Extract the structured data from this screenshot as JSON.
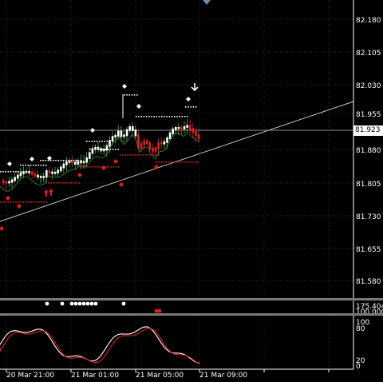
{
  "main_panel": {
    "price_labels": [
      "82.180",
      "82.105",
      "82.030",
      "81.955",
      "81.880",
      "81.805",
      "81.730",
      "81.655",
      "81.580"
    ],
    "current_price": "81.923"
  },
  "indicator1": {
    "labels": [
      "175.404",
      "100.000"
    ]
  },
  "oscillator": {
    "labels": [
      "100",
      "80",
      "20",
      "0"
    ]
  },
  "time_axis": {
    "labels": [
      "20 Mar 21:00",
      "21 Mar 01:00",
      "21 Mar 05:00",
      "21 Mar 09:00"
    ]
  },
  "colors": {
    "background": "#000000",
    "grid": "#2c2c2c",
    "bull_candle": "#ffffff",
    "bear_candle": "#e02020",
    "wick_green": "#4caf50",
    "dots_white": "#ffffff",
    "dots_red": "#e02020",
    "trendline": "#c8c8c8",
    "separator": "#7a7a7a"
  }
}
